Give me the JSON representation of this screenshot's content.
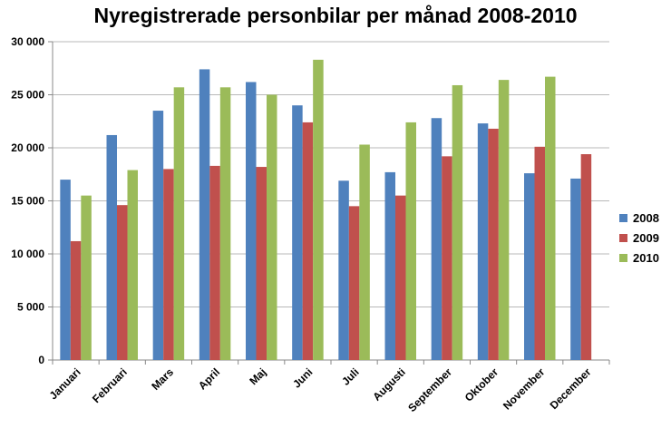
{
  "chart_data": {
    "type": "bar",
    "title": "Nyregistrerade personbilar per månad 2008-2010",
    "xlabel": "",
    "ylabel": "",
    "ylim": [
      0,
      30000
    ],
    "yticks": [
      0,
      5000,
      10000,
      15000,
      20000,
      25000,
      30000
    ],
    "ytick_labels": [
      "0",
      "5 000",
      "10 000",
      "15 000",
      "20 000",
      "25 000",
      "30 000"
    ],
    "grid": true,
    "legend_position": "right",
    "categories": [
      "Januari",
      "Februari",
      "Mars",
      "April",
      "Maj",
      "Juni",
      "Juli",
      "Augusti",
      "September",
      "Oktober",
      "November",
      "December"
    ],
    "series": [
      {
        "name": "2008",
        "color": "#4f81bd",
        "values": [
          17000,
          21200,
          23500,
          27400,
          26200,
          24000,
          16900,
          17700,
          22800,
          22300,
          17600,
          17100
        ]
      },
      {
        "name": "2009",
        "color": "#c0504d",
        "values": [
          11200,
          14600,
          18000,
          18300,
          18200,
          22400,
          14500,
          15500,
          19200,
          21800,
          20100,
          19400
        ]
      },
      {
        "name": "2010",
        "color": "#9bbb59",
        "values": [
          15500,
          17900,
          25700,
          25700,
          25000,
          28300,
          20300,
          22400,
          25900,
          26400,
          26700,
          null
        ]
      }
    ]
  }
}
